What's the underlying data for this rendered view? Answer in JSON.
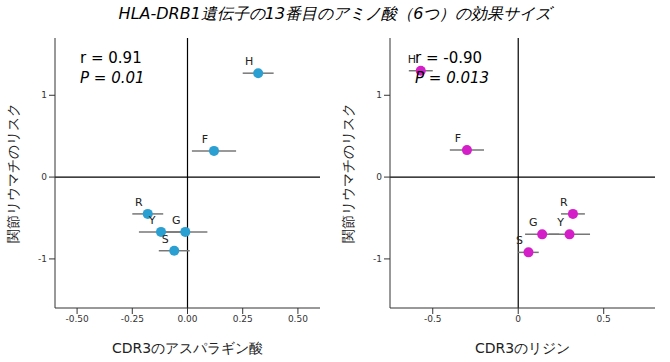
{
  "title": "HLA-DRB1遺伝子の13番目のアミノ酸（6つ）の効果サイズ",
  "chart_data": [
    {
      "type": "scatter",
      "x_label": "CDR3のアスパラギン酸",
      "y_label": "関節リウマチのリスク",
      "annotations": [
        "r = 0.91",
        "P = 0.01"
      ],
      "color": "#2a9fd2",
      "point_labels": [
        "H",
        "F",
        "R",
        "Y",
        "G",
        "S"
      ],
      "x": [
        0.32,
        0.12,
        -0.18,
        -0.12,
        -0.01,
        -0.06
      ],
      "x_error": [
        0.07,
        0.1,
        0.07,
        0.1,
        0.1,
        0.07
      ],
      "y": [
        1.27,
        0.32,
        -0.45,
        -0.67,
        -0.67,
        -0.9
      ],
      "xlim": [
        -0.6,
        0.6
      ],
      "xticks": [
        {
          "value": -0.5,
          "label": "-0.50"
        },
        {
          "value": -0.25,
          "label": "-0.25"
        },
        {
          "value": 0,
          "label": "0.00"
        },
        {
          "value": 0.25,
          "label": "0.25"
        },
        {
          "value": 0.5,
          "label": "0.50"
        }
      ],
      "ylim": [
        -1.6,
        1.7
      ],
      "yticks": [
        -1,
        0,
        1
      ]
    },
    {
      "type": "scatter",
      "x_label": "CDR3のリジン",
      "y_label": "関節リウマチのリスク",
      "annotations": [
        "r = -0.90",
        "P = 0.013"
      ],
      "color": "#d41ec8",
      "point_labels": [
        "H",
        "F",
        "R",
        "Y",
        "G",
        "S"
      ],
      "x": [
        -0.57,
        -0.3,
        0.32,
        0.3,
        0.14,
        0.06
      ],
      "x_error": [
        0.07,
        0.1,
        0.07,
        0.12,
        0.1,
        0.06
      ],
      "y": [
        1.3,
        0.33,
        -0.45,
        -0.7,
        -0.7,
        -0.92
      ],
      "xlim": [
        -0.75,
        0.8
      ],
      "xticks": [
        -0.5,
        0,
        0.5
      ],
      "ylim": [
        -1.6,
        1.7
      ],
      "yticks": [
        -1,
        0,
        1
      ]
    }
  ]
}
